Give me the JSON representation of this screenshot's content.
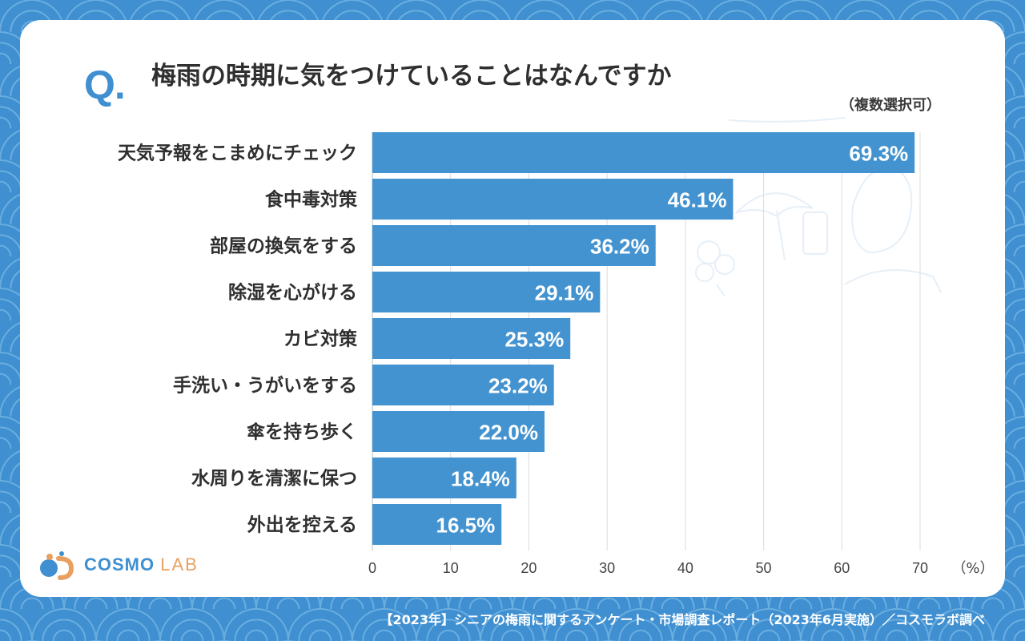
{
  "question": {
    "mark": "Q.",
    "text": "梅雨の時期に気をつけていることはなんですか",
    "note": "（複数選択可）"
  },
  "chart_data": {
    "type": "bar",
    "orientation": "horizontal",
    "categories": [
      "天気予報をこまめにチェック",
      "食中毒対策",
      "部屋の換気をする",
      "除湿を心がける",
      "カビ対策",
      "手洗い・うがいをする",
      "傘を持ち歩く",
      "水周りを清潔に保つ",
      "外出を控える"
    ],
    "values": [
      69.3,
      46.1,
      36.2,
      29.1,
      25.3,
      23.2,
      22.0,
      18.4,
      16.5
    ],
    "value_labels": [
      "69.3%",
      "46.1%",
      "36.2%",
      "29.1%",
      "25.3%",
      "23.2%",
      "22.0%",
      "18.4%",
      "16.5%"
    ],
    "xlim": [
      0,
      70
    ],
    "xticks": [
      0,
      10,
      20,
      30,
      40,
      50,
      60,
      70
    ],
    "x_unit": "（%）",
    "grid": true,
    "bar_color": "#4393d0"
  },
  "logo": {
    "brand": "COSMO",
    "suffix": "LAB"
  },
  "footer": "【2023年】シニアの梅雨に関するアンケート・市場調査レポート（2023年6月実施）／コスモラボ調べ",
  "colors": {
    "background": "#3f8fd1",
    "accent": "#3f8fd1",
    "logo_orange": "#e8a060",
    "text": "#2f2f2f"
  }
}
